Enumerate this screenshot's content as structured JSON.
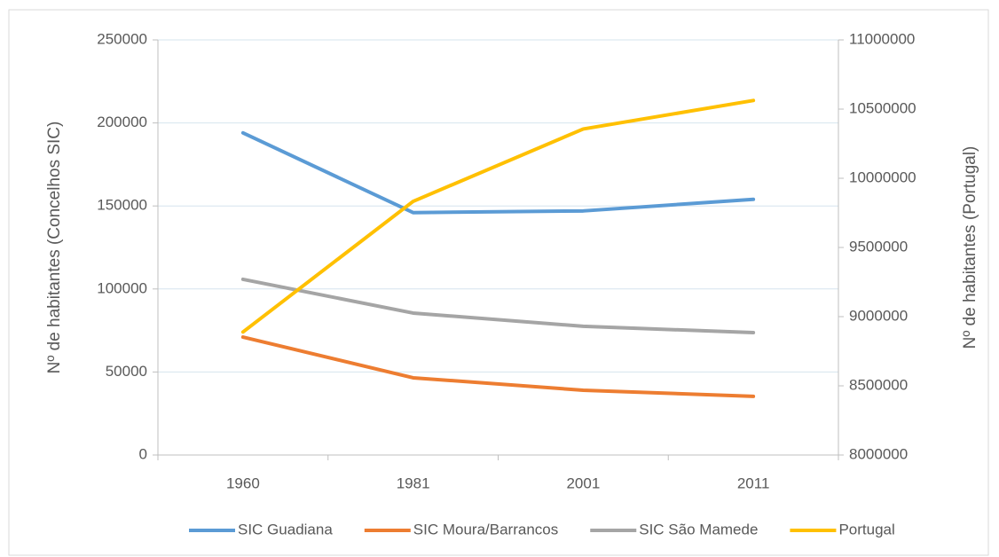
{
  "chart_data": {
    "type": "line",
    "categories": [
      "1960",
      "1981",
      "2001",
      "2011"
    ],
    "series": [
      {
        "name": "SIC Guadiana",
        "color": "#5b9bd5",
        "values": [
          194000,
          146000,
          147000,
          154000
        ]
      },
      {
        "name": "SIC Moura/Barrancos",
        "color": "#ed7d31",
        "values": [
          71000,
          46500,
          39000,
          35300
        ]
      },
      {
        "name": "SIC São Mamede",
        "color": "#a5a5a5",
        "values": [
          105800,
          85500,
          77500,
          73700
        ]
      },
      {
        "name": "Portugal",
        "color": "#ffc000",
        "axis": "y2",
        "values": [
          8889000,
          9833000,
          10356000,
          10562000
        ]
      }
    ],
    "ylabel": "Nº de habitantes (Concelhos SIC)",
    "y2label": "Nº de habitantes (Portugal)",
    "ylim": [
      0,
      250000
    ],
    "yticks": [
      0,
      50000,
      100000,
      150000,
      200000,
      250000
    ],
    "y2lim": [
      8000000,
      11000000
    ],
    "y2ticks": [
      8000000,
      8500000,
      9000000,
      9500000,
      10000000,
      10500000,
      11000000
    ],
    "grid": true,
    "legend": "bottom"
  }
}
